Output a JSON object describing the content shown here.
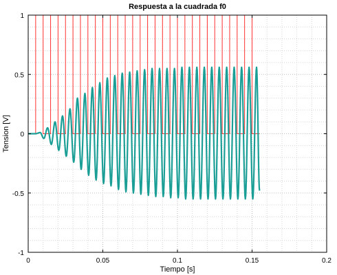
{
  "chart_data": {
    "type": "line",
    "title": "Respuesta a la cuadrada f0",
    "xlabel": "Tiempo [s]",
    "ylabel": "Tension [V]",
    "xlim": [
      0,
      0.2
    ],
    "ylim": [
      -1,
      1
    ],
    "xticks": [
      0,
      0.05,
      0.1,
      0.15,
      0.2
    ],
    "xtick_labels": [
      "0",
      "0.05",
      "0.1",
      "0.15",
      "0.2"
    ],
    "yticks": [
      -1,
      -0.5,
      0,
      0.5,
      1
    ],
    "ytick_labels": [
      "-1",
      "-0.5",
      "0",
      "0.5",
      "1"
    ],
    "grid": true,
    "minor_grid": true,
    "series": [
      {
        "color": "#ff3030",
        "style": "square",
        "x": [
          0,
          0.005,
          0.005,
          0.01,
          0.01,
          0.015,
          0.015,
          0.02,
          0.02,
          0.025,
          0.025,
          0.03,
          0.03,
          0.035,
          0.035,
          0.04,
          0.04,
          0.045,
          0.045,
          0.05,
          0.05,
          0.055,
          0.055,
          0.06,
          0.06,
          0.065,
          0.065,
          0.07,
          0.07,
          0.075,
          0.075,
          0.08,
          0.08,
          0.085,
          0.085,
          0.09,
          0.09,
          0.095,
          0.095,
          0.1,
          0.1,
          0.105,
          0.105,
          0.11,
          0.11,
          0.115,
          0.115,
          0.12,
          0.12,
          0.125,
          0.125,
          0.13,
          0.13,
          0.135,
          0.135,
          0.14,
          0.14,
          0.145,
          0.145,
          0.15,
          0.15,
          0.155
        ],
        "y": [
          0,
          0,
          1,
          1,
          0,
          0,
          1,
          1,
          0,
          0,
          1,
          1,
          0,
          0,
          1,
          1,
          0,
          0,
          1,
          1,
          0,
          0,
          1,
          1,
          0,
          0,
          1,
          1,
          0,
          0,
          1,
          1,
          0,
          0,
          1,
          1,
          0,
          0,
          1,
          1,
          0,
          0,
          1,
          1,
          0,
          0,
          1,
          1,
          0,
          0,
          1,
          1,
          0,
          0,
          1,
          1,
          0,
          0,
          1,
          1,
          0,
          0
        ]
      },
      {
        "color": "#1a9e96",
        "style": "oscillation",
        "x": [
          0,
          0.005,
          0.008,
          0.0105,
          0.013,
          0.0155,
          0.018,
          0.0205,
          0.023,
          0.0255,
          0.028,
          0.0305,
          0.033,
          0.0355,
          0.038,
          0.0405,
          0.043,
          0.0455,
          0.048,
          0.0505,
          0.053,
          0.0555,
          0.058,
          0.0605,
          0.063,
          0.0655,
          0.068,
          0.0705,
          0.073,
          0.0755,
          0.078,
          0.0805,
          0.083,
          0.0855,
          0.088,
          0.0905,
          0.093,
          0.0955,
          0.098,
          0.1005,
          0.103,
          0.1055,
          0.108,
          0.1105,
          0.113,
          0.1155,
          0.118,
          0.1205,
          0.123,
          0.1255,
          0.128,
          0.1305,
          0.133,
          0.1355,
          0.138,
          0.1405,
          0.143,
          0.1455,
          0.148,
          0.1505,
          0.153,
          0.155
        ],
        "y": [
          0,
          0,
          0.01,
          -0.04,
          0.05,
          -0.09,
          0.1,
          -0.14,
          0.15,
          -0.19,
          0.21,
          -0.24,
          0.3,
          -0.3,
          0.34,
          -0.35,
          0.39,
          -0.39,
          0.43,
          -0.42,
          0.47,
          -0.44,
          0.49,
          -0.47,
          0.51,
          -0.49,
          0.52,
          -0.5,
          0.53,
          -0.51,
          0.54,
          -0.52,
          0.55,
          -0.53,
          0.55,
          -0.53,
          0.55,
          -0.54,
          0.55,
          -0.54,
          0.56,
          -0.55,
          0.56,
          -0.55,
          0.56,
          -0.55,
          0.56,
          -0.55,
          0.56,
          -0.55,
          0.56,
          -0.55,
          0.56,
          -0.55,
          0.56,
          -0.55,
          0.56,
          -0.55,
          0.56,
          -0.55,
          0.56,
          -0.48
        ]
      }
    ]
  }
}
